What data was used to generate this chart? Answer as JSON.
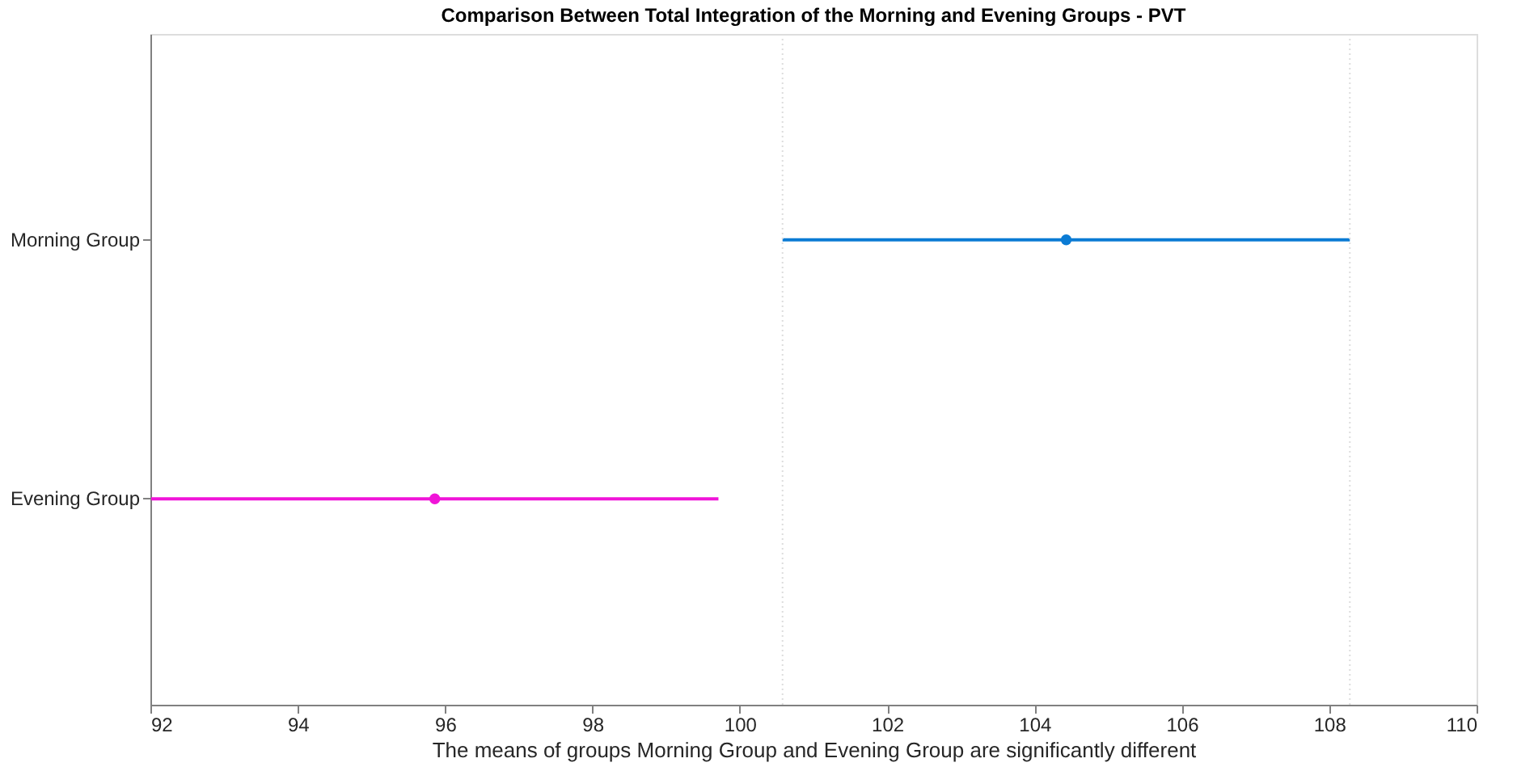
{
  "chart_data": {
    "type": "scatter",
    "orientation": "horizontal",
    "title": "Comparison Between Total Integration of the Morning and Evening Groups - PVT",
    "xlabel": "The means of groups Morning Group and Evening Group are significantly different",
    "categories": [
      "Morning Group",
      "Evening Group"
    ],
    "values": [
      104.43,
      95.86
    ],
    "errors": [
      3.85,
      3.85
    ],
    "colors": [
      "#0b7bd4",
      "#f014d8"
    ],
    "xlim": [
      92,
      110
    ],
    "xticks": [
      92,
      94,
      96,
      98,
      100,
      102,
      104,
      106,
      108,
      110
    ],
    "ref_lines": [
      {
        "axis": "x",
        "value": 100.58,
        "color": "#dddddd",
        "line_style": "dotted"
      },
      {
        "axis": "x",
        "value": 108.28,
        "color": "#dddddd",
        "line_style": "dotted"
      }
    ],
    "marker": "circle",
    "grid": false
  }
}
